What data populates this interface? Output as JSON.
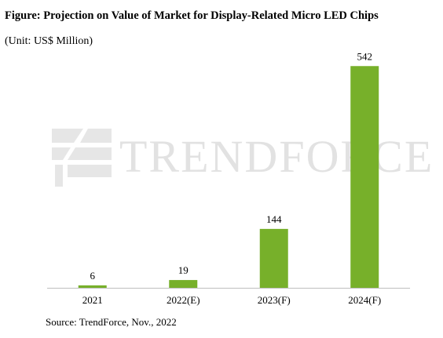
{
  "figure": {
    "title": "Figure: Projection on Value of Market for Display-Related Micro LED Chips",
    "unit": "(Unit: US$ Million)",
    "source": "Source: TrendForce, Nov., 2022"
  },
  "watermark": {
    "text": "TRENDFORCE",
    "color": "#e2e2e2"
  },
  "chart_data": {
    "type": "bar",
    "categories": [
      "2021",
      "2022(E)",
      "2023(F)",
      "2024(F)"
    ],
    "values": [
      6,
      19,
      144,
      542
    ],
    "data_labels": [
      "6",
      "19",
      "144",
      "542"
    ],
    "ylim": [
      0,
      600
    ],
    "bar_color": "#77b02a",
    "grid": false,
    "legend": "none"
  }
}
